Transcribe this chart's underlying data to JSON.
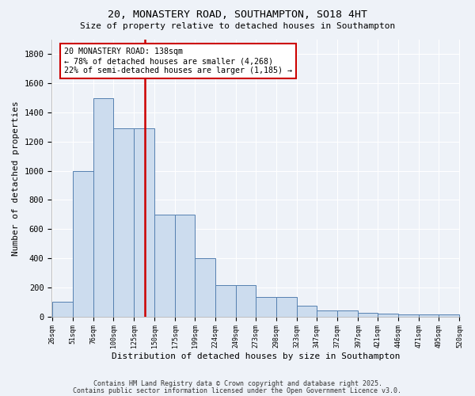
{
  "title1": "20, MONASTERY ROAD, SOUTHAMPTON, SO18 4HT",
  "title2": "Size of property relative to detached houses in Southampton",
  "xlabel": "Distribution of detached houses by size in Southampton",
  "ylabel": "Number of detached properties",
  "bins": [
    26,
    51,
    76,
    100,
    125,
    150,
    175,
    199,
    224,
    249,
    273,
    298,
    323,
    347,
    372,
    397,
    421,
    446,
    471,
    495,
    520
  ],
  "heights": [
    100,
    1000,
    1500,
    1290,
    1290,
    700,
    700,
    400,
    215,
    215,
    135,
    135,
    75,
    40,
    40,
    25,
    20,
    15,
    15,
    15
  ],
  "bar_color": "#ccdcee",
  "bar_edge_color": "#5580b0",
  "red_line_x": 138,
  "annotation_line1": "20 MONASTERY ROAD: 138sqm",
  "annotation_line2": "← 78% of detached houses are smaller (4,268)",
  "annotation_line3": "22% of semi-detached houses are larger (1,185) →",
  "annotation_box_color": "white",
  "annotation_box_edge_color": "#cc0000",
  "ylim": [
    0,
    1900
  ],
  "yticks": [
    0,
    200,
    400,
    600,
    800,
    1000,
    1200,
    1400,
    1600,
    1800
  ],
  "bg_color": "#eef2f8",
  "grid_color": "#ffffff",
  "footer1": "Contains HM Land Registry data © Crown copyright and database right 2025.",
  "footer2": "Contains public sector information licensed under the Open Government Licence v3.0."
}
